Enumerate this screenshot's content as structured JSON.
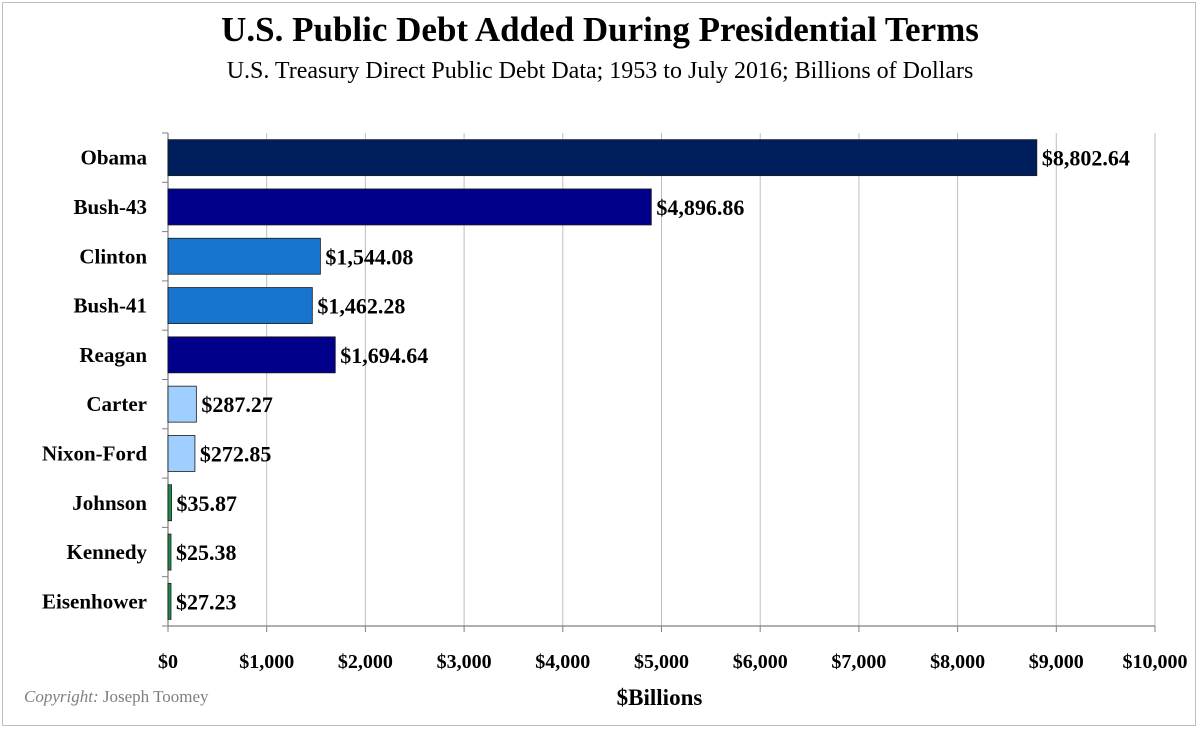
{
  "chart_data": {
    "type": "bar",
    "orientation": "horizontal",
    "title": "U.S. Public Debt Added During Presidential Terms",
    "subtitle": "U.S. Treasury Direct Public Debt Data; 1953 to July 2016; Billions of Dollars",
    "xlabel": "$Billions",
    "ylabel": "",
    "xlim": [
      0,
      10000
    ],
    "x_ticks": [
      0,
      1000,
      2000,
      3000,
      4000,
      5000,
      6000,
      7000,
      8000,
      9000,
      10000
    ],
    "x_tick_labels": [
      "$0",
      "$1,000",
      "$2,000",
      "$3,000",
      "$4,000",
      "$5,000",
      "$6,000",
      "$7,000",
      "$8,000",
      "$9,000",
      "$10,000"
    ],
    "grid": true,
    "categories": [
      "Obama",
      "Bush-43",
      "Clinton",
      "Bush-41",
      "Reagan",
      "Carter",
      "Nixon-Ford",
      "Johnson",
      "Kennedy",
      "Eisenhower"
    ],
    "values": [
      8802.64,
      4896.86,
      1544.08,
      1462.28,
      1694.64,
      287.27,
      272.85,
      35.87,
      25.38,
      27.23
    ],
    "data_labels": [
      "$8,802.64",
      "$4,896.86",
      "$1,544.08",
      "$1,462.28",
      "$1,694.64",
      "$287.27",
      "$272.85",
      "$35.87",
      "$25.38",
      "$27.23"
    ],
    "bar_colors": [
      "#001d5c",
      "#00008b",
      "#1874cd",
      "#1874cd",
      "#00008b",
      "#9ecfff",
      "#9ecfff",
      "#1e8c4c",
      "#1e8c4c",
      "#1e8c4c"
    ]
  },
  "copyright": {
    "prefix": "Copyright:",
    "author": "Joseph Toomey"
  }
}
